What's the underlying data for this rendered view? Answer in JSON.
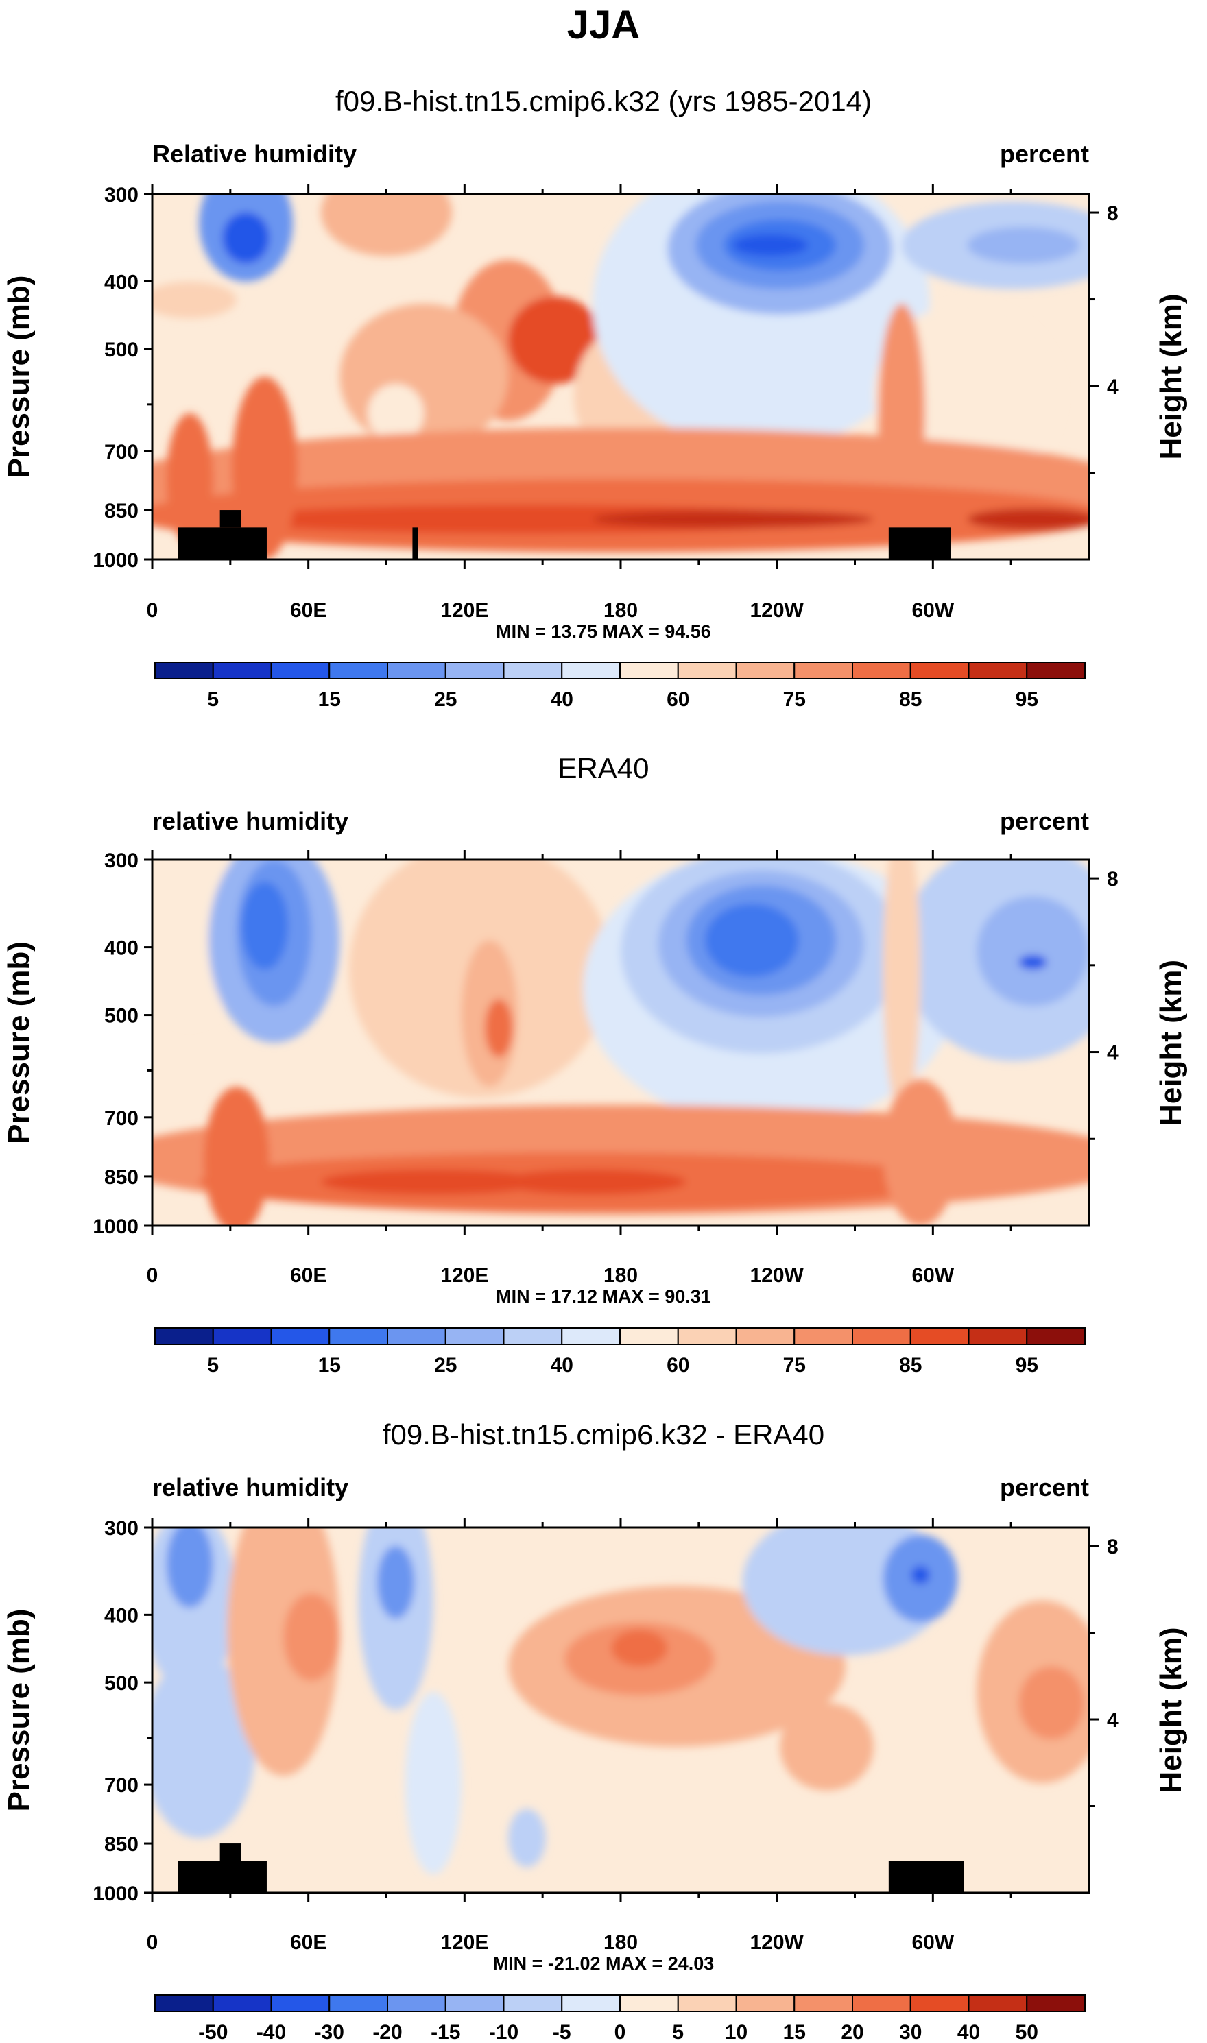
{
  "figure": {
    "title": "JJA"
  },
  "chart_data": [
    {
      "type": "heatmap",
      "title": "f09.B-hist.tn15.cmip6.k32 (yrs 1985-2014)",
      "left_label": "Relative humidity",
      "right_label": "percent",
      "ylabel": "Pressure (mb)",
      "ylabel_right": "Height (km)",
      "y_ticks": [
        "300",
        "400",
        "500",
        "700",
        "850",
        "1000"
      ],
      "y_tick_values": [
        300,
        400,
        500,
        700,
        850,
        1000
      ],
      "height_ticks": [
        "8",
        "4"
      ],
      "height_tick_values": [
        8,
        4
      ],
      "x_ticks": [
        "0",
        "60E",
        "120E",
        "180",
        "120W",
        "60W"
      ],
      "x_tick_values": [
        0,
        60,
        120,
        180,
        240,
        300
      ],
      "xlim": [
        0,
        360
      ],
      "ylim": [
        300,
        1000
      ],
      "stats": "MIN =  13.75  MAX =  94.56",
      "colorbar": {
        "labels": [
          "5",
          "15",
          "25",
          "40",
          "60",
          "75",
          "85",
          "95"
        ],
        "colors": [
          "#0a1f8c",
          "#1634c7",
          "#2457e8",
          "#3f78ee",
          "#6b95f0",
          "#97b4f3",
          "#bcd0f6",
          "#dde9fa",
          "#fdebd9",
          "#fbd2b5",
          "#f8b491",
          "#f4916a",
          "#ef6e45",
          "#e54c25",
          "#c52f16",
          "#8c0f0b"
        ]
      },
      "features": [
        {
          "x": 0.04,
          "y": 0.29,
          "rx": 0.05,
          "ry": 0.05,
          "level": 9
        },
        {
          "x": 0.1,
          "y": 0.08,
          "rx": 0.05,
          "ry": 0.16,
          "level": 4
        },
        {
          "x": 0.1,
          "y": 0.12,
          "rx": 0.025,
          "ry": 0.07,
          "level": 2
        },
        {
          "x": 0.25,
          "y": 0.05,
          "rx": 0.07,
          "ry": 0.12,
          "level": 10
        },
        {
          "x": 0.38,
          "y": 0.4,
          "rx": 0.06,
          "ry": 0.22,
          "level": 11
        },
        {
          "x": 0.43,
          "y": 0.4,
          "rx": 0.05,
          "ry": 0.12,
          "level": 13
        },
        {
          "x": 0.29,
          "y": 0.5,
          "rx": 0.09,
          "ry": 0.2,
          "level": 10
        },
        {
          "x": 0.26,
          "y": 0.6,
          "rx": 0.03,
          "ry": 0.08,
          "level": 8
        },
        {
          "x": 0.52,
          "y": 0.55,
          "rx": 0.07,
          "ry": 0.2,
          "level": 9
        },
        {
          "x": 0.65,
          "y": 0.5,
          "rx": 0.11,
          "ry": 0.3,
          "level": 8
        },
        {
          "x": 0.65,
          "y": 0.3,
          "rx": 0.18,
          "ry": 0.4,
          "level": 7
        },
        {
          "x": 0.67,
          "y": 0.15,
          "rx": 0.12,
          "ry": 0.18,
          "level": 5
        },
        {
          "x": 0.67,
          "y": 0.14,
          "rx": 0.09,
          "ry": 0.12,
          "level": 4
        },
        {
          "x": 0.67,
          "y": 0.14,
          "rx": 0.06,
          "ry": 0.07,
          "level": 3
        },
        {
          "x": 0.66,
          "y": 0.14,
          "rx": 0.04,
          "ry": 0.03,
          "level": 2
        },
        {
          "x": 0.92,
          "y": 0.14,
          "rx": 0.12,
          "ry": 0.12,
          "level": 6
        },
        {
          "x": 0.93,
          "y": 0.14,
          "rx": 0.06,
          "ry": 0.05,
          "level": 5
        },
        {
          "x": 0.87,
          "y": 0.55,
          "rx": 0.1,
          "ry": 0.25,
          "level": 8
        },
        {
          "x": 0.8,
          "y": 0.6,
          "rx": 0.025,
          "ry": 0.3,
          "level": 11
        },
        {
          "x": 0.5,
          "y": 0.8,
          "rx": 0.55,
          "ry": 0.16,
          "level": 11
        },
        {
          "x": 0.5,
          "y": 0.88,
          "rx": 0.52,
          "ry": 0.1,
          "level": 12
        },
        {
          "x": 0.4,
          "y": 0.89,
          "rx": 0.32,
          "ry": 0.04,
          "level": 13
        },
        {
          "x": 0.62,
          "y": 0.89,
          "rx": 0.15,
          "ry": 0.025,
          "level": 14
        },
        {
          "x": 0.94,
          "y": 0.89,
          "rx": 0.07,
          "ry": 0.03,
          "level": 14
        },
        {
          "x": 0.12,
          "y": 0.75,
          "rx": 0.035,
          "ry": 0.25,
          "level": 12
        },
        {
          "x": 0.04,
          "y": 0.78,
          "rx": 0.025,
          "ry": 0.18,
          "level": 12
        }
      ],
      "land_blocks": [
        {
          "lon": [
            10,
            44
          ],
          "p": [
            900,
            1000
          ]
        },
        {
          "lon": [
            26,
            34
          ],
          "p": [
            850,
            900
          ]
        },
        {
          "lon": [
            100,
            102
          ],
          "p": [
            900,
            1000
          ]
        },
        {
          "lon": [
            283,
            307
          ],
          "p": [
            900,
            1000
          ]
        }
      ]
    },
    {
      "type": "heatmap",
      "title": "ERA40",
      "left_label": "relative humidity",
      "right_label": "percent",
      "ylabel": "Pressure (mb)",
      "ylabel_right": "Height (km)",
      "y_ticks": [
        "300",
        "400",
        "500",
        "700",
        "850",
        "1000"
      ],
      "y_tick_values": [
        300,
        400,
        500,
        700,
        850,
        1000
      ],
      "height_ticks": [
        "8",
        "4"
      ],
      "height_tick_values": [
        8,
        4
      ],
      "x_ticks": [
        "0",
        "60E",
        "120E",
        "180",
        "120W",
        "60W"
      ],
      "x_tick_values": [
        0,
        60,
        120,
        180,
        240,
        300
      ],
      "xlim": [
        0,
        360
      ],
      "ylim": [
        300,
        1000
      ],
      "stats": "MIN =  17.12  MAX =  90.31",
      "colorbar": {
        "labels": [
          "5",
          "15",
          "25",
          "40",
          "60",
          "75",
          "85",
          "95"
        ],
        "colors": [
          "#0a1f8c",
          "#1634c7",
          "#2457e8",
          "#3f78ee",
          "#6b95f0",
          "#97b4f3",
          "#bcd0f6",
          "#dde9fa",
          "#fdebd9",
          "#fbd2b5",
          "#f8b491",
          "#f4916a",
          "#ef6e45",
          "#e54c25",
          "#c52f16",
          "#8c0f0b"
        ]
      },
      "features": [
        {
          "x": 0.04,
          "y": 0.2,
          "rx": 0.06,
          "ry": 0.25,
          "level": 8
        },
        {
          "x": 0.13,
          "y": 0.22,
          "rx": 0.07,
          "ry": 0.28,
          "level": 5
        },
        {
          "x": 0.13,
          "y": 0.2,
          "rx": 0.04,
          "ry": 0.2,
          "level": 4
        },
        {
          "x": 0.12,
          "y": 0.18,
          "rx": 0.025,
          "ry": 0.12,
          "level": 3
        },
        {
          "x": 0.35,
          "y": 0.3,
          "rx": 0.14,
          "ry": 0.35,
          "level": 9
        },
        {
          "x": 0.36,
          "y": 0.42,
          "rx": 0.03,
          "ry": 0.2,
          "level": 10
        },
        {
          "x": 0.37,
          "y": 0.46,
          "rx": 0.015,
          "ry": 0.08,
          "level": 12
        },
        {
          "x": 0.66,
          "y": 0.35,
          "rx": 0.2,
          "ry": 0.38,
          "level": 7
        },
        {
          "x": 0.65,
          "y": 0.25,
          "rx": 0.15,
          "ry": 0.28,
          "level": 6
        },
        {
          "x": 0.65,
          "y": 0.23,
          "rx": 0.11,
          "ry": 0.2,
          "level": 5
        },
        {
          "x": 0.65,
          "y": 0.22,
          "rx": 0.08,
          "ry": 0.15,
          "level": 4
        },
        {
          "x": 0.64,
          "y": 0.22,
          "rx": 0.05,
          "ry": 0.1,
          "level": 3
        },
        {
          "x": 0.92,
          "y": 0.25,
          "rx": 0.12,
          "ry": 0.3,
          "level": 6
        },
        {
          "x": 0.94,
          "y": 0.25,
          "rx": 0.06,
          "ry": 0.15,
          "level": 5
        },
        {
          "x": 0.94,
          "y": 0.28,
          "rx": 0.015,
          "ry": 0.02,
          "level": 2
        },
        {
          "x": 0.8,
          "y": 0.3,
          "rx": 0.02,
          "ry": 0.4,
          "level": 9
        },
        {
          "x": 0.5,
          "y": 0.82,
          "rx": 0.55,
          "ry": 0.15,
          "level": 11
        },
        {
          "x": 0.45,
          "y": 0.88,
          "rx": 0.4,
          "ry": 0.08,
          "level": 12
        },
        {
          "x": 0.3,
          "y": 0.88,
          "rx": 0.12,
          "ry": 0.035,
          "level": 13
        },
        {
          "x": 0.47,
          "y": 0.88,
          "rx": 0.1,
          "ry": 0.035,
          "level": 13
        },
        {
          "x": 0.09,
          "y": 0.82,
          "rx": 0.035,
          "ry": 0.2,
          "level": 12
        },
        {
          "x": 0.82,
          "y": 0.8,
          "rx": 0.04,
          "ry": 0.2,
          "level": 11
        }
      ],
      "land_blocks": []
    },
    {
      "type": "heatmap",
      "title": "f09.B-hist.tn15.cmip6.k32 - ERA40",
      "left_label": "relative humidity",
      "right_label": "percent",
      "ylabel": "Pressure (mb)",
      "ylabel_right": "Height (km)",
      "y_ticks": [
        "300",
        "400",
        "500",
        "700",
        "850",
        "1000"
      ],
      "y_tick_values": [
        300,
        400,
        500,
        700,
        850,
        1000
      ],
      "height_ticks": [
        "8",
        "4"
      ],
      "height_tick_values": [
        8,
        4
      ],
      "x_ticks": [
        "0",
        "60E",
        "120E",
        "180",
        "120W",
        "60W"
      ],
      "x_tick_values": [
        0,
        60,
        120,
        180,
        240,
        300
      ],
      "xlim": [
        0,
        360
      ],
      "ylim": [
        300,
        1000
      ],
      "stats": "MIN = -21.02  MAX = 24.03",
      "colorbar": {
        "labels": [
          "-50",
          "-40",
          "-30",
          "-20",
          "-15",
          "-10",
          "-5",
          "0",
          "5",
          "10",
          "15",
          "20",
          "30",
          "40",
          "50"
        ],
        "colors": [
          "#0a1f8c",
          "#1634c7",
          "#2457e8",
          "#3f78ee",
          "#6b95f0",
          "#97b4f3",
          "#bcd0f6",
          "#dde9fa",
          "#fdebd9",
          "#fbd2b5",
          "#f8b491",
          "#f4916a",
          "#ef6e45",
          "#e54c25",
          "#c52f16",
          "#8c0f0b"
        ]
      },
      "features": [
        {
          "x": 0.04,
          "y": 0.2,
          "rx": 0.05,
          "ry": 0.25,
          "level": 6
        },
        {
          "x": 0.04,
          "y": 0.1,
          "rx": 0.025,
          "ry": 0.12,
          "level": 4
        },
        {
          "x": 0.05,
          "y": 0.6,
          "rx": 0.06,
          "ry": 0.25,
          "level": 6
        },
        {
          "x": 0.14,
          "y": 0.28,
          "rx": 0.06,
          "ry": 0.4,
          "level": 10
        },
        {
          "x": 0.17,
          "y": 0.3,
          "rx": 0.03,
          "ry": 0.12,
          "level": 11
        },
        {
          "x": 0.26,
          "y": 0.2,
          "rx": 0.04,
          "ry": 0.3,
          "level": 6
        },
        {
          "x": 0.26,
          "y": 0.15,
          "rx": 0.02,
          "ry": 0.1,
          "level": 4
        },
        {
          "x": 0.56,
          "y": 0.38,
          "rx": 0.18,
          "ry": 0.22,
          "level": 10
        },
        {
          "x": 0.52,
          "y": 0.36,
          "rx": 0.08,
          "ry": 0.1,
          "level": 11
        },
        {
          "x": 0.52,
          "y": 0.33,
          "rx": 0.03,
          "ry": 0.05,
          "level": 12
        },
        {
          "x": 0.74,
          "y": 0.15,
          "rx": 0.11,
          "ry": 0.2,
          "level": 6
        },
        {
          "x": 0.82,
          "y": 0.14,
          "rx": 0.04,
          "ry": 0.12,
          "level": 4
        },
        {
          "x": 0.82,
          "y": 0.13,
          "rx": 0.01,
          "ry": 0.025,
          "level": 2
        },
        {
          "x": 0.95,
          "y": 0.45,
          "rx": 0.07,
          "ry": 0.25,
          "level": 10
        },
        {
          "x": 0.96,
          "y": 0.48,
          "rx": 0.035,
          "ry": 0.1,
          "level": 11
        },
        {
          "x": 0.72,
          "y": 0.6,
          "rx": 0.05,
          "ry": 0.12,
          "level": 10
        },
        {
          "x": 0.4,
          "y": 0.85,
          "rx": 0.02,
          "ry": 0.08,
          "level": 6
        },
        {
          "x": 0.3,
          "y": 0.7,
          "rx": 0.03,
          "ry": 0.25,
          "level": 7
        }
      ],
      "land_blocks": [
        {
          "lon": [
            10,
            44
          ],
          "p": [
            900,
            1000
          ]
        },
        {
          "lon": [
            26,
            34
          ],
          "p": [
            850,
            900
          ]
        },
        {
          "lon": [
            283,
            312
          ],
          "p": [
            900,
            1000
          ]
        }
      ]
    }
  ]
}
